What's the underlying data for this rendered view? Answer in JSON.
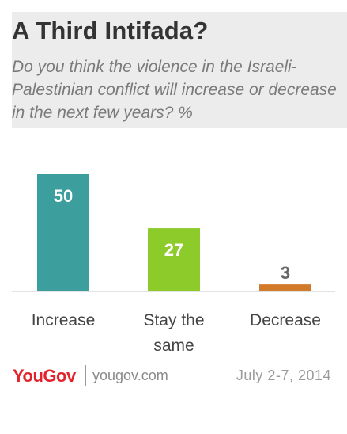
{
  "title": "A Third Intifada?",
  "subtitle": "Do you think the violence in the Israeli-Palestinian conflict will increase or decrease in the next few years? %",
  "chart_data": {
    "type": "bar",
    "categories": [
      "Increase",
      "Stay the same",
      "Decrease"
    ],
    "category_lines": [
      [
        "Increase"
      ],
      [
        "Stay the",
        "same"
      ],
      [
        "Decrease"
      ]
    ],
    "values": [
      50,
      27,
      3
    ],
    "colors": [
      "#3d9e9e",
      "#8ccb2a",
      "#d07a2a"
    ],
    "label_colors": [
      "#ffffff",
      "#ffffff",
      "#666666"
    ],
    "title": "A Third Intifada?",
    "xlabel": "",
    "ylabel": "",
    "ylim": [
      0,
      50
    ],
    "grid": false,
    "legend": "none"
  },
  "footer": {
    "logo": "YouGov",
    "site": "yougov.com",
    "date": "July 2-7, 2014"
  }
}
